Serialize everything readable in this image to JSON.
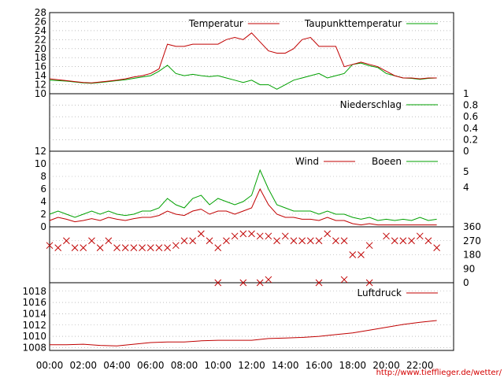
{
  "source_url": "http://www.tiefflieger.de/wetter/",
  "colors": {
    "red": "#c00000",
    "green": "#00a000",
    "grid": "#999999"
  },
  "chart_data": [
    {
      "type": "line",
      "name": "temperature-panel",
      "x": [
        "00:00",
        "00:30",
        "01:00",
        "01:30",
        "02:00",
        "02:30",
        "03:00",
        "03:30",
        "04:00",
        "04:30",
        "05:00",
        "05:30",
        "06:00",
        "06:30",
        "07:00",
        "07:30",
        "08:00",
        "08:30",
        "09:00",
        "09:30",
        "10:00",
        "10:30",
        "11:00",
        "11:30",
        "12:00",
        "12:30",
        "13:00",
        "13:30",
        "14:00",
        "14:30",
        "15:00",
        "15:30",
        "16:00",
        "16:30",
        "17:00",
        "17:30",
        "18:00",
        "18:30",
        "19:00",
        "19:30",
        "20:00",
        "20:30",
        "21:00",
        "21:30",
        "22:00",
        "22:30",
        "23:00"
      ],
      "series": [
        {
          "name": "Temperatur",
          "values": [
            13.3,
            13.1,
            12.9,
            12.7,
            12.5,
            12.4,
            12.6,
            12.8,
            13.0,
            13.3,
            13.7,
            14.0,
            14.5,
            15.5,
            21.0,
            20.5,
            20.5,
            21.0,
            21.0,
            21.0,
            21.0,
            22.0,
            22.5,
            22.0,
            23.5,
            21.5,
            19.5,
            19.0,
            19.0,
            20.0,
            22.0,
            22.5,
            20.5,
            20.5,
            20.5,
            16.0,
            16.5,
            17.0,
            16.5,
            16.0,
            15.0,
            14.0,
            13.5,
            13.5,
            13.3,
            13.5,
            13.5
          ]
        },
        {
          "name": "Taupunkttemperatur",
          "values": [
            13.0,
            12.9,
            12.8,
            12.6,
            12.4,
            12.3,
            12.5,
            12.7,
            12.9,
            13.1,
            13.4,
            13.7,
            14.0,
            15.0,
            16.3,
            14.5,
            14.0,
            14.3,
            14.0,
            13.8,
            14.0,
            13.5,
            13.0,
            12.5,
            13.0,
            12.0,
            12.0,
            11.0,
            12.0,
            13.0,
            13.5,
            14.0,
            14.5,
            13.5,
            14.0,
            14.5,
            16.5,
            16.8,
            16.2,
            15.8,
            14.5,
            14.0,
            13.5,
            13.4,
            13.2,
            13.4,
            13.5
          ]
        }
      ],
      "ylim": [
        10,
        28
      ],
      "yticks": [
        10,
        12,
        14,
        16,
        18,
        20,
        22,
        24,
        26,
        28
      ],
      "legend": [
        "Temperatur",
        "Taupunkttemperatur"
      ]
    },
    {
      "type": "line",
      "name": "precipitation-panel",
      "series": [
        {
          "name": "Niederschlag",
          "values": []
        }
      ],
      "ylim": [
        0,
        1
      ],
      "yticks": [
        0,
        0.2,
        0.4,
        0.6,
        0.8,
        1
      ],
      "legend": [
        "Niederschlag"
      ]
    },
    {
      "type": "line",
      "name": "wind-panel",
      "x": [
        "00:00",
        "00:30",
        "01:00",
        "01:30",
        "02:00",
        "02:30",
        "03:00",
        "03:30",
        "04:00",
        "04:30",
        "05:00",
        "05:30",
        "06:00",
        "06:30",
        "07:00",
        "07:30",
        "08:00",
        "08:30",
        "09:00",
        "09:30",
        "10:00",
        "10:30",
        "11:00",
        "11:30",
        "12:00",
        "12:30",
        "13:00",
        "13:30",
        "14:00",
        "14:30",
        "15:00",
        "15:30",
        "16:00",
        "16:30",
        "17:00",
        "17:30",
        "18:00",
        "18:30",
        "19:00",
        "19:30",
        "20:00",
        "20:30",
        "21:00",
        "21:30",
        "22:00",
        "22:30",
        "23:00"
      ],
      "series": [
        {
          "name": "Wind",
          "values": [
            1.0,
            1.5,
            1.2,
            0.8,
            1.0,
            1.3,
            1.0,
            1.5,
            1.2,
            1.0,
            1.3,
            1.5,
            1.5,
            1.8,
            2.5,
            2.0,
            1.8,
            2.5,
            2.8,
            2.0,
            2.5,
            2.5,
            2.0,
            2.5,
            3.0,
            6.0,
            3.5,
            2.0,
            1.5,
            1.5,
            1.2,
            1.2,
            1.0,
            1.5,
            1.0,
            1.0,
            0.5,
            0.3,
            0.5,
            0.3,
            0.3,
            0.3,
            0.3,
            0.3,
            0.3,
            0.3,
            0.3
          ]
        },
        {
          "name": "Boeen",
          "values": [
            2.0,
            2.5,
            2.0,
            1.5,
            2.0,
            2.5,
            2.0,
            2.5,
            2.0,
            1.8,
            2.0,
            2.5,
            2.5,
            3.0,
            4.5,
            3.5,
            3.0,
            4.5,
            5.0,
            3.5,
            4.5,
            4.0,
            3.5,
            4.0,
            5.0,
            9.0,
            6.0,
            3.5,
            3.0,
            2.5,
            2.5,
            2.5,
            2.0,
            2.5,
            2.0,
            2.0,
            1.5,
            1.2,
            1.5,
            1.0,
            1.2,
            1.0,
            1.2,
            1.0,
            1.5,
            1.0,
            1.2
          ]
        }
      ],
      "ylim": [
        0,
        12
      ],
      "yticks": [
        0,
        2,
        4,
        6,
        8,
        10,
        12
      ],
      "right_ticks": [
        "5",
        "4"
      ],
      "legend": [
        "Wind",
        "Boeen"
      ]
    },
    {
      "type": "scatter",
      "name": "wind-direction-panel",
      "x": [
        "00:00",
        "00:30",
        "01:00",
        "01:30",
        "02:00",
        "02:30",
        "03:00",
        "03:30",
        "04:00",
        "04:30",
        "05:00",
        "05:30",
        "06:00",
        "06:30",
        "07:00",
        "07:30",
        "08:00",
        "08:30",
        "09:00",
        "09:30",
        "10:00",
        "10:30",
        "11:00",
        "11:30",
        "12:00",
        "12:30",
        "13:00",
        "13:30",
        "14:00",
        "14:30",
        "15:00",
        "15:30",
        "16:00",
        "16:30",
        "17:00",
        "17:30",
        "18:00",
        "18:30",
        "19:00",
        "20:00",
        "20:30",
        "21:00",
        "21:30",
        "22:00",
        "22:30",
        "23:00"
      ],
      "values": [
        240,
        225,
        270,
        225,
        225,
        270,
        225,
        270,
        225,
        225,
        225,
        225,
        225,
        225,
        225,
        240,
        270,
        270,
        315,
        270,
        225,
        270,
        300,
        315,
        315,
        300,
        300,
        270,
        300,
        270,
        270,
        270,
        270,
        315,
        270,
        270,
        180,
        180,
        240,
        300,
        270,
        270,
        270,
        300,
        270,
        225
      ],
      "ylim": [
        0,
        360
      ],
      "yticks": [
        0,
        90,
        180,
        270,
        360
      ],
      "outliers": [
        {
          "x": "10:00",
          "y": 0
        },
        {
          "x": "11:30",
          "y": 0
        },
        {
          "x": "12:30",
          "y": 0
        },
        {
          "x": "13:00",
          "y": 20
        },
        {
          "x": "16:00",
          "y": 0
        },
        {
          "x": "17:30",
          "y": 20
        },
        {
          "x": "19:00",
          "y": 0
        }
      ]
    },
    {
      "type": "line",
      "name": "pressure-panel",
      "x": [
        "00:00",
        "01:00",
        "02:00",
        "03:00",
        "04:00",
        "05:00",
        "06:00",
        "07:00",
        "08:00",
        "09:00",
        "10:00",
        "11:00",
        "12:00",
        "13:00",
        "14:00",
        "15:00",
        "16:00",
        "17:00",
        "18:00",
        "19:00",
        "20:00",
        "21:00",
        "22:00",
        "23:00"
      ],
      "series": [
        {
          "name": "Luftdruck",
          "values": [
            1008.5,
            1008.5,
            1008.6,
            1008.4,
            1008.3,
            1008.6,
            1008.9,
            1009.0,
            1009.0,
            1009.2,
            1009.3,
            1009.3,
            1009.3,
            1009.6,
            1009.7,
            1009.8,
            1010.0,
            1010.3,
            1010.6,
            1011.1,
            1011.6,
            1012.1,
            1012.5,
            1012.8
          ]
        }
      ],
      "ylim": [
        1007.5,
        1019.5
      ],
      "yticks": [
        1008,
        1010,
        1012,
        1014,
        1016,
        1018
      ],
      "legend": [
        "Luftdruck"
      ]
    }
  ],
  "x_axis": {
    "ticks": [
      "00:00",
      "02:00",
      "04:00",
      "06:00",
      "08:00",
      "10:00",
      "12:00",
      "14:00",
      "16:00",
      "18:00",
      "20:00",
      "22:00"
    ]
  }
}
